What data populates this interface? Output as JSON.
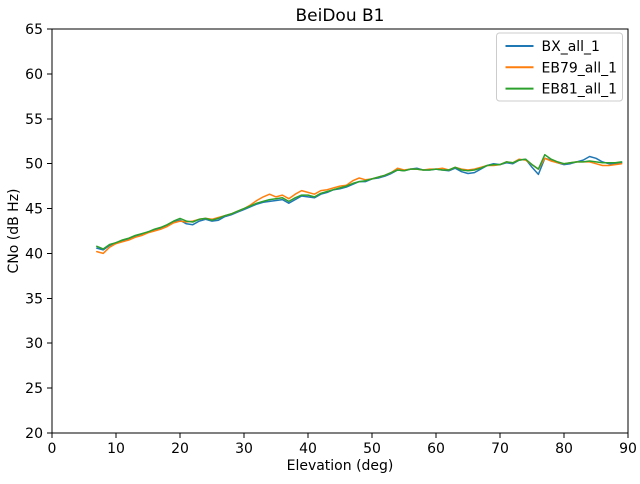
{
  "chart_data": {
    "type": "line",
    "title": "BeiDou B1",
    "xlabel": "Elevation (deg)",
    "ylabel": "CNo (dB Hz)",
    "xlim": [
      0,
      90
    ],
    "ylim": [
      20,
      65
    ],
    "xticks": [
      0,
      10,
      20,
      30,
      40,
      50,
      60,
      70,
      80,
      90
    ],
    "yticks": [
      20,
      25,
      30,
      35,
      40,
      45,
      50,
      55,
      60,
      65
    ],
    "grid": false,
    "axis_color": "#000000",
    "background": "#ffffff",
    "legend": {
      "position": "upper right",
      "border_color": "#cccccc",
      "background": "#ffffff"
    },
    "x": [
      7,
      8,
      9,
      10,
      11,
      12,
      13,
      14,
      15,
      16,
      17,
      18,
      19,
      20,
      21,
      22,
      23,
      24,
      25,
      26,
      27,
      28,
      29,
      30,
      31,
      32,
      33,
      34,
      35,
      36,
      37,
      38,
      39,
      40,
      41,
      42,
      43,
      44,
      45,
      46,
      47,
      48,
      49,
      50,
      51,
      52,
      53,
      54,
      55,
      56,
      57,
      58,
      59,
      60,
      61,
      62,
      63,
      64,
      65,
      66,
      67,
      68,
      69,
      70,
      71,
      72,
      73,
      74,
      75,
      76,
      77,
      78,
      79,
      80,
      81,
      82,
      83,
      84,
      85,
      86,
      87,
      88,
      89
    ],
    "series": [
      {
        "name": "BX_all_1",
        "color": "#1f77b4",
        "values": [
          40.6,
          40.4,
          40.9,
          41.2,
          41.4,
          41.6,
          41.9,
          42.1,
          42.4,
          42.6,
          42.8,
          43.1,
          43.5,
          43.7,
          43.3,
          43.2,
          43.6,
          43.8,
          43.6,
          43.7,
          44.1,
          44.3,
          44.6,
          44.9,
          45.2,
          45.5,
          45.7,
          45.8,
          45.9,
          46.0,
          45.6,
          46.0,
          46.4,
          46.3,
          46.2,
          46.6,
          46.8,
          47.1,
          47.2,
          47.4,
          47.7,
          48.0,
          48.0,
          48.3,
          48.4,
          48.6,
          48.9,
          49.3,
          49.2,
          49.4,
          49.5,
          49.3,
          49.3,
          49.4,
          49.3,
          49.2,
          49.5,
          49.1,
          48.9,
          49.0,
          49.4,
          49.8,
          50.0,
          49.9,
          50.1,
          50.0,
          50.4,
          50.5,
          49.6,
          48.8,
          50.6,
          50.4,
          50.1,
          49.9,
          50.0,
          50.2,
          50.4,
          50.8,
          50.6,
          50.2,
          50.0,
          50.0,
          50.1
        ]
      },
      {
        "name": "EB79_all_1",
        "color": "#ff7f0e",
        "values": [
          40.2,
          40.0,
          40.7,
          41.1,
          41.3,
          41.5,
          41.8,
          42.0,
          42.3,
          42.5,
          42.7,
          43.0,
          43.4,
          43.6,
          43.5,
          43.6,
          43.8,
          43.9,
          43.8,
          44.0,
          44.2,
          44.4,
          44.7,
          45.0,
          45.4,
          45.9,
          46.3,
          46.6,
          46.3,
          46.5,
          46.1,
          46.6,
          47.0,
          46.8,
          46.6,
          47.0,
          47.1,
          47.3,
          47.5,
          47.6,
          48.1,
          48.4,
          48.2,
          48.3,
          48.5,
          48.7,
          49.0,
          49.5,
          49.3,
          49.4,
          49.4,
          49.3,
          49.4,
          49.4,
          49.5,
          49.3,
          49.6,
          49.4,
          49.3,
          49.4,
          49.6,
          49.8,
          49.8,
          49.9,
          50.2,
          50.1,
          50.5,
          50.4,
          49.9,
          49.4,
          50.6,
          50.3,
          50.1,
          50.0,
          50.1,
          50.2,
          50.2,
          50.2,
          50.0,
          49.8,
          49.8,
          49.9,
          50.0
        ]
      },
      {
        "name": "EB81_all_1",
        "color": "#2ca02c",
        "values": [
          40.8,
          40.5,
          41.0,
          41.2,
          41.5,
          41.7,
          42.0,
          42.2,
          42.4,
          42.7,
          42.9,
          43.2,
          43.6,
          43.9,
          43.6,
          43.5,
          43.8,
          43.9,
          43.7,
          43.9,
          44.2,
          44.4,
          44.7,
          45.0,
          45.3,
          45.6,
          45.8,
          46.0,
          46.1,
          46.2,
          45.8,
          46.2,
          46.5,
          46.5,
          46.3,
          46.7,
          46.9,
          47.1,
          47.3,
          47.5,
          47.8,
          48.0,
          48.1,
          48.3,
          48.5,
          48.7,
          49.0,
          49.3,
          49.2,
          49.4,
          49.4,
          49.3,
          49.3,
          49.4,
          49.3,
          49.3,
          49.6,
          49.3,
          49.2,
          49.3,
          49.5,
          49.8,
          49.9,
          49.9,
          50.2,
          50.1,
          50.4,
          50.5,
          49.9,
          49.4,
          51.0,
          50.5,
          50.2,
          50.0,
          50.1,
          50.2,
          50.2,
          50.3,
          50.2,
          50.1,
          50.1,
          50.1,
          50.2
        ]
      }
    ]
  }
}
